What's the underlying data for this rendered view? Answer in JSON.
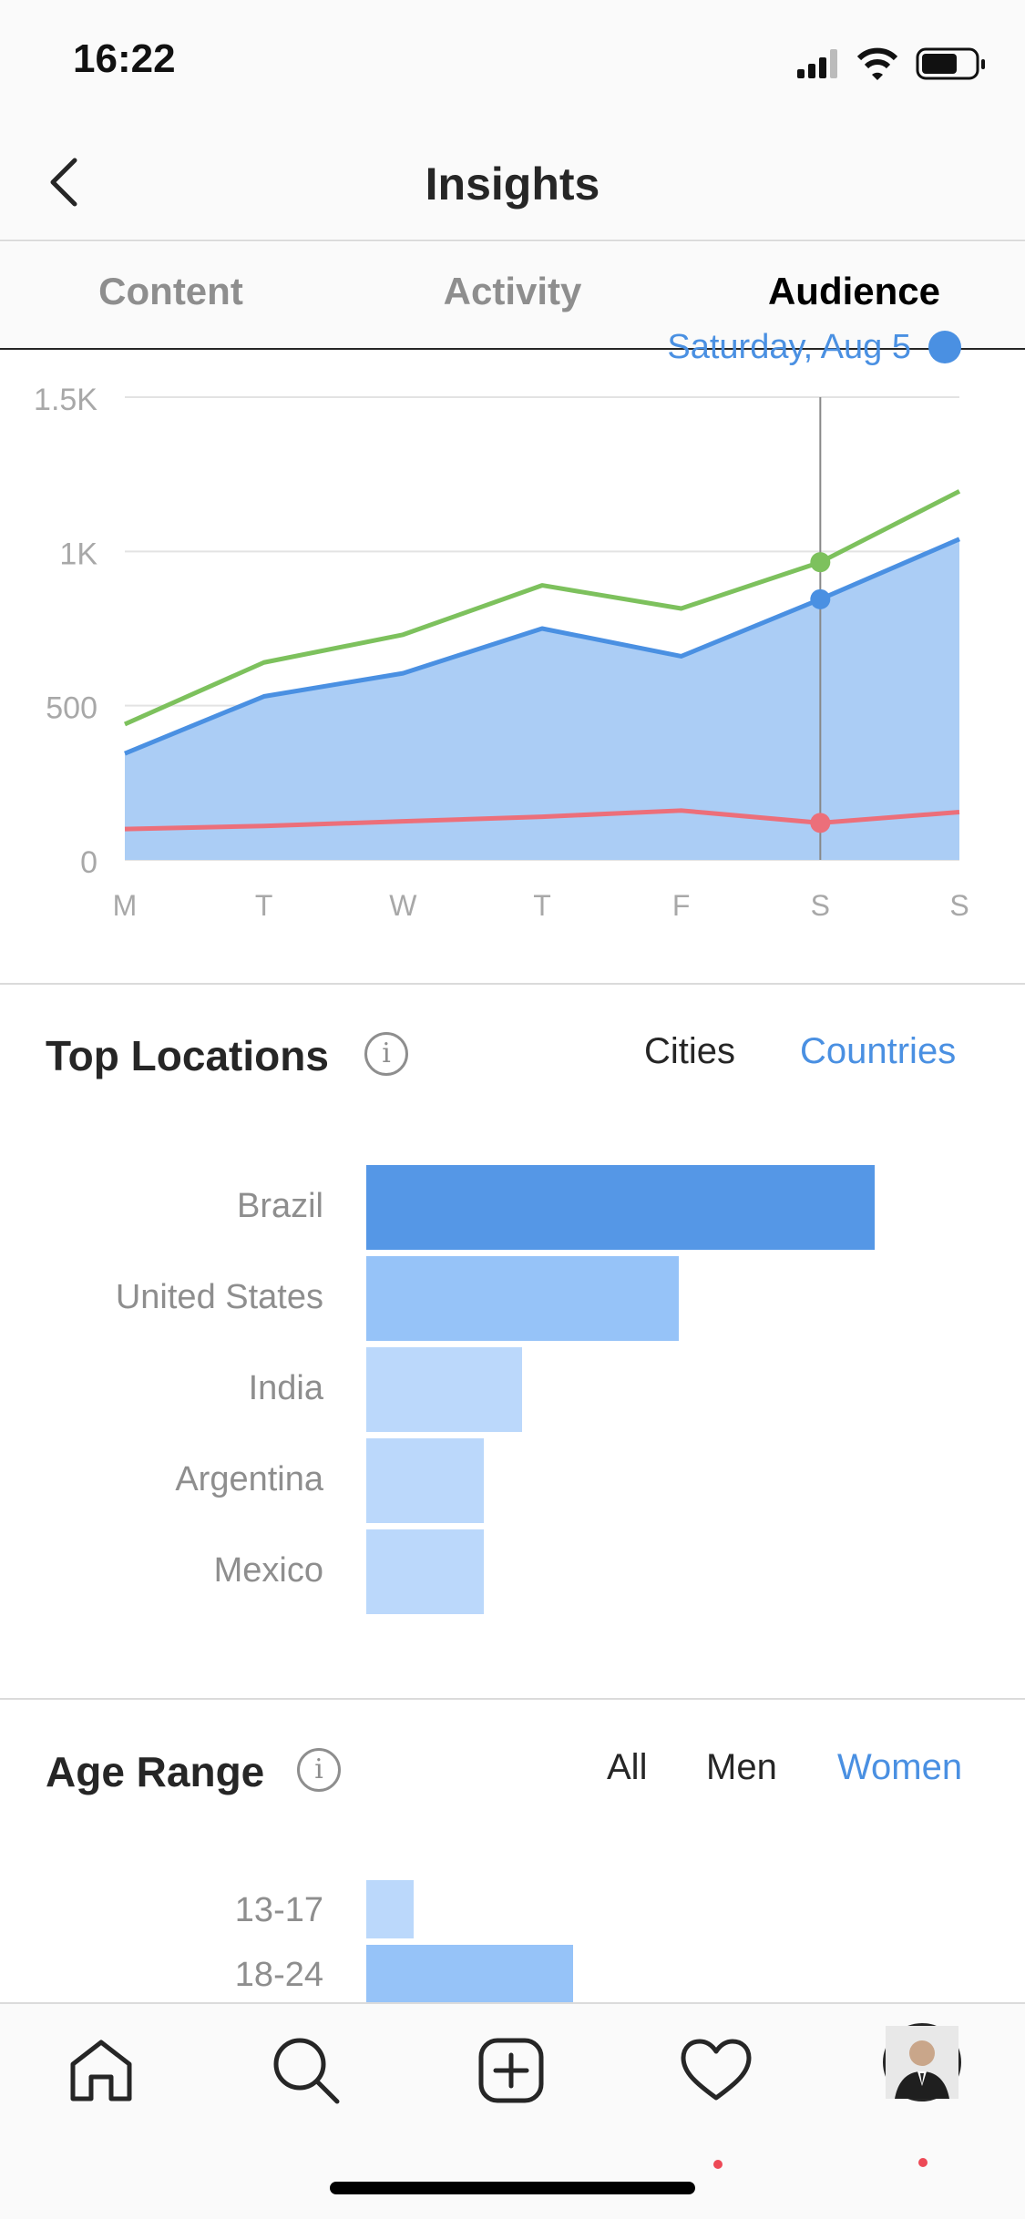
{
  "status_bar": {
    "time": "16:22"
  },
  "nav": {
    "title": "Insights"
  },
  "tabs": [
    {
      "label": "Content"
    },
    {
      "label": "Activity"
    },
    {
      "label": "Audience"
    }
  ],
  "chart_data": {
    "type": "line",
    "x": [
      "M",
      "T",
      "W",
      "T",
      "F",
      "S",
      "S"
    ],
    "ylim": [
      0,
      1500
    ],
    "y_ticks": [
      "0",
      "500",
      "1K",
      "1.5K"
    ],
    "y_tick_values": [
      0,
      500,
      1000,
      1500
    ],
    "tooltip_label": "Saturday, Aug 5",
    "highlight_index": 5,
    "grid": true,
    "series": [
      {
        "values": [
          440,
          640,
          730,
          890,
          815,
          965,
          1195
        ],
        "color": "#7dc15d"
      },
      {
        "values": [
          345,
          530,
          605,
          750,
          660,
          845,
          1040
        ],
        "color": "#4a90e2",
        "fill": "#abcdf5"
      },
      {
        "values": [
          100,
          110,
          125,
          140,
          160,
          120,
          155
        ],
        "color": "#ec6f7a"
      }
    ]
  },
  "top_locations": {
    "title": "Top Locations",
    "filters": [
      "Cities",
      "Countries"
    ],
    "selected_filter": "Countries",
    "items": [
      {
        "label": "Brazil",
        "fraction": 1.0,
        "color": "#5597e6"
      },
      {
        "label": "United States",
        "fraction": 0.615,
        "color": "#96c3f8"
      },
      {
        "label": "India",
        "fraction": 0.307,
        "color": "#bbd8fb"
      },
      {
        "label": "Argentina",
        "fraction": 0.231,
        "color": "#bbd8fb"
      },
      {
        "label": "Mexico",
        "fraction": 0.231,
        "color": "#bbd8fb"
      }
    ]
  },
  "age_range": {
    "title": "Age Range",
    "filters": [
      "All",
      "Men",
      "Women"
    ],
    "selected_filter": "Women",
    "items": [
      {
        "label": "13-17",
        "fraction": 0.094,
        "color": "#bbd8fb"
      },
      {
        "label": "18-24",
        "fraction": 0.407,
        "color": "#96c3f8"
      }
    ]
  },
  "bottom_nav": {
    "items": [
      "home-icon",
      "search-icon",
      "new-post-icon",
      "activity-heart-icon",
      "profile-avatar"
    ]
  }
}
